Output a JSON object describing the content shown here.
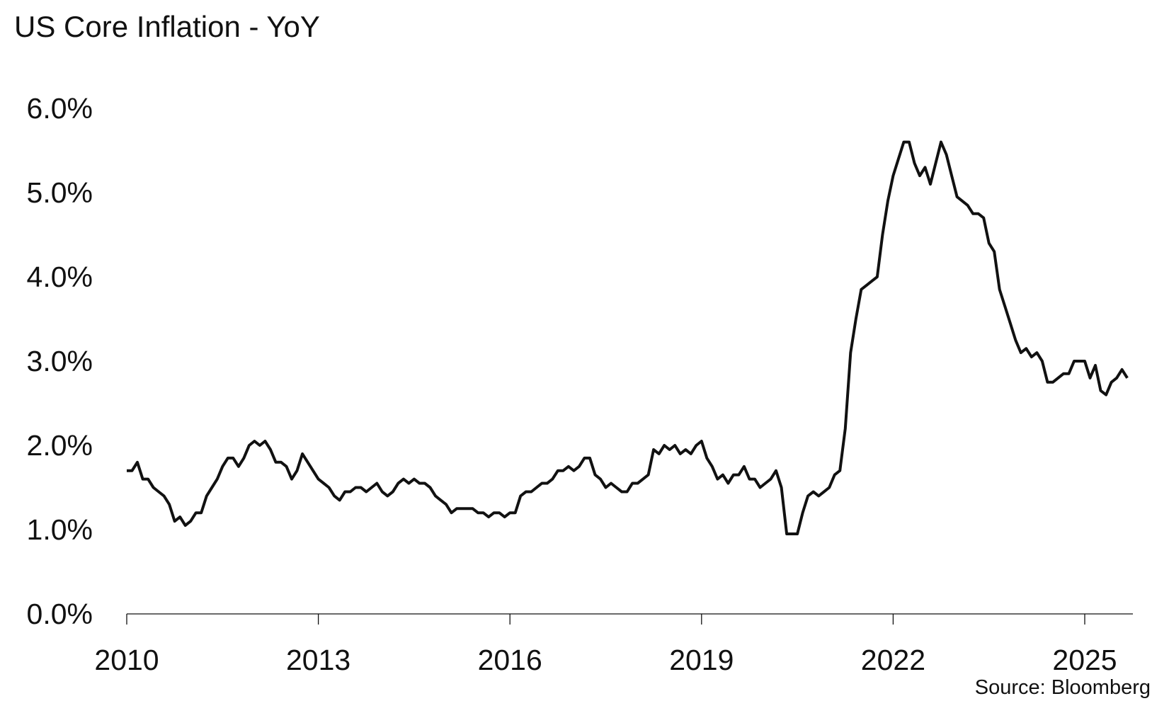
{
  "chart_data": {
    "type": "line",
    "title": "US Core Inflation - YoY",
    "source": "Source: Bloomberg",
    "xlabel": "",
    "ylabel": "",
    "ylim": [
      0,
      6
    ],
    "y_ticks": [
      "0.0%",
      "1.0%",
      "2.0%",
      "3.0%",
      "4.0%",
      "5.0%",
      "6.0%"
    ],
    "x_ticks": [
      "2010",
      "2013",
      "2016",
      "2019",
      "2022",
      "2025"
    ],
    "x_start": "2010-01",
    "frequency": "monthly",
    "grid": false,
    "line_color": "#111111",
    "series": [
      {
        "values": [
          1.7,
          1.7,
          1.8,
          1.6,
          1.6,
          1.5,
          1.45,
          1.4,
          1.3,
          1.1,
          1.15,
          1.05,
          1.1,
          1.2,
          1.2,
          1.4,
          1.5,
          1.6,
          1.75,
          1.85,
          1.85,
          1.75,
          1.85,
          2.0,
          2.05,
          2.0,
          2.05,
          1.95,
          1.8,
          1.8,
          1.75,
          1.6,
          1.7,
          1.9,
          1.8,
          1.7,
          1.6,
          1.55,
          1.5,
          1.4,
          1.35,
          1.45,
          1.45,
          1.5,
          1.5,
          1.45,
          1.5,
          1.55,
          1.45,
          1.4,
          1.45,
          1.55,
          1.6,
          1.55,
          1.6,
          1.55,
          1.55,
          1.5,
          1.4,
          1.35,
          1.3,
          1.2,
          1.25,
          1.25,
          1.25,
          1.25,
          1.2,
          1.2,
          1.15,
          1.2,
          1.2,
          1.15,
          1.2,
          1.2,
          1.4,
          1.45,
          1.45,
          1.5,
          1.55,
          1.55,
          1.6,
          1.7,
          1.7,
          1.75,
          1.7,
          1.75,
          1.85,
          1.85,
          1.65,
          1.6,
          1.5,
          1.55,
          1.5,
          1.45,
          1.45,
          1.55,
          1.55,
          1.6,
          1.65,
          1.95,
          1.9,
          2.0,
          1.95,
          2.0,
          1.9,
          1.95,
          1.9,
          2.0,
          2.05,
          1.85,
          1.75,
          1.6,
          1.65,
          1.55,
          1.65,
          1.65,
          1.75,
          1.6,
          1.6,
          1.5,
          1.55,
          1.6,
          1.7,
          1.5,
          0.95,
          0.95,
          0.95,
          1.2,
          1.4,
          1.45,
          1.4,
          1.45,
          1.5,
          1.65,
          1.7,
          2.2,
          3.1,
          3.5,
          3.85,
          3.9,
          3.95,
          4.0,
          4.5,
          4.9,
          5.2,
          5.4,
          5.6,
          5.6,
          5.35,
          5.2,
          5.3,
          5.1,
          5.35,
          5.6,
          5.45,
          5.2,
          4.95,
          4.9,
          4.85,
          4.75,
          4.75,
          4.7,
          4.4,
          4.3,
          3.85,
          3.65,
          3.45,
          3.25,
          3.1,
          3.15,
          3.05,
          3.1,
          3.0,
          2.75,
          2.75,
          2.8,
          2.85,
          2.85,
          3.0,
          3.0,
          3.0,
          2.8,
          2.95,
          2.65,
          2.6,
          2.75,
          2.8,
          2.9,
          2.8
        ]
      }
    ]
  }
}
